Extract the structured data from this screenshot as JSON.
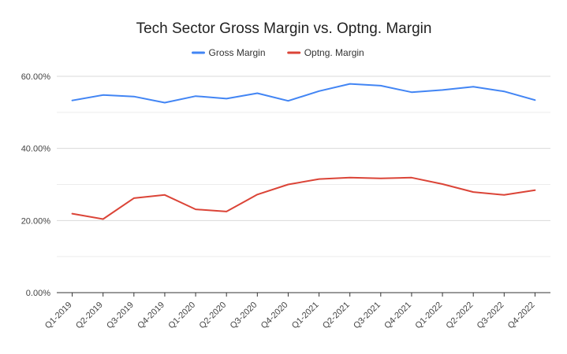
{
  "chart_data": {
    "type": "line",
    "title": "Tech Sector Gross Margin vs. Optng. Margin",
    "xlabel": "",
    "ylabel": "",
    "ylim": [
      0,
      0.6
    ],
    "yticks": [
      0,
      0.2,
      0.4,
      0.6
    ],
    "ytick_labels": [
      "0.00%",
      "20.00%",
      "40.00%",
      "60.00%"
    ],
    "grid": true,
    "legend_position": "top-center",
    "categories": [
      "Q1-2019",
      "Q2-2019",
      "Q3-2019",
      "Q4-2019",
      "Q1-2020",
      "Q2-2020",
      "Q3-2020",
      "Q4-2020",
      "Q1-2021",
      "Q2-2021",
      "Q3-2021",
      "Q4-2021",
      "Q1-2022",
      "Q2-2022",
      "Q3-2022",
      "Q4-2022"
    ],
    "series": [
      {
        "name": "Gross Margin",
        "color": "#4285f4",
        "values": [
          0.533,
          0.548,
          0.544,
          0.527,
          0.545,
          0.538,
          0.553,
          0.532,
          0.559,
          0.579,
          0.574,
          0.556,
          0.562,
          0.571,
          0.558,
          0.534
        ]
      },
      {
        "name": "Optng. Margin",
        "color": "#db4437",
        "values": [
          0.219,
          0.204,
          0.262,
          0.271,
          0.231,
          0.225,
          0.272,
          0.3,
          0.315,
          0.319,
          0.317,
          0.319,
          0.301,
          0.279,
          0.271,
          0.284
        ]
      }
    ]
  }
}
